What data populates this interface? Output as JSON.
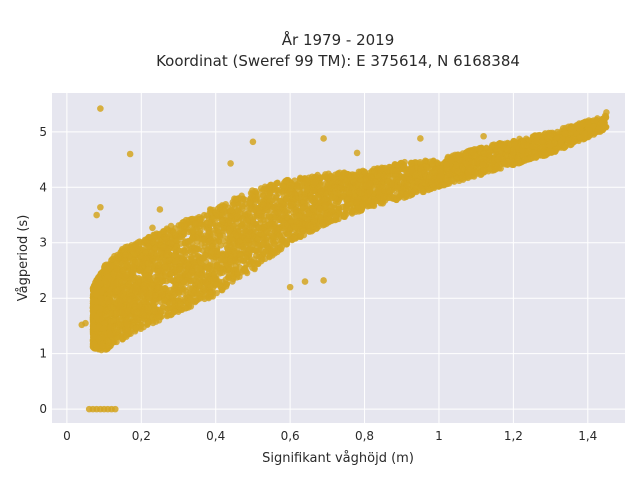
{
  "chart_data": {
    "type": "scatter",
    "title": "År 1979 - 2019",
    "subtitle": "Koordinat (Sweref 99 TM): E 375614, N 6168384",
    "xlabel": "Signifikant våghöjd (m)",
    "ylabel": "Vågperiod (s)",
    "xlim": [
      -0.04,
      1.5
    ],
    "ylim": [
      -0.25,
      5.7
    ],
    "x_ticks": [
      0,
      0.2,
      0.4,
      0.6,
      0.8,
      1,
      1.2,
      1.4
    ],
    "x_tick_labels": [
      "0",
      "0,2",
      "0,4",
      "0,6",
      "0,8",
      "1",
      "1,2",
      "1,4"
    ],
    "y_ticks": [
      0,
      1,
      2,
      3,
      4,
      5
    ],
    "y_tick_labels": [
      "0",
      "1",
      "2",
      "3",
      "4",
      "5"
    ],
    "grid": true,
    "legend": "none",
    "colors": {
      "marker": "#d4a520",
      "plot_bg": "#e6e6ef",
      "grid": "#ffffff",
      "text": "#2a2a2a"
    },
    "series": [
      {
        "cloud_band": [
          {
            "x": 0.07,
            "y_low": 1.1,
            "y_high": 2.2
          },
          {
            "x": 0.1,
            "y_low": 1.05,
            "y_high": 2.6
          },
          {
            "x": 0.15,
            "y_low": 1.25,
            "y_high": 2.9
          },
          {
            "x": 0.2,
            "y_low": 1.45,
            "y_high": 3.05
          },
          {
            "x": 0.3,
            "y_low": 1.75,
            "y_high": 3.35
          },
          {
            "x": 0.4,
            "y_low": 2.05,
            "y_high": 3.65
          },
          {
            "x": 0.5,
            "y_low": 2.5,
            "y_high": 3.95
          },
          {
            "x": 0.6,
            "y_low": 3.0,
            "y_high": 4.15
          },
          {
            "x": 0.7,
            "y_low": 3.35,
            "y_high": 4.25
          },
          {
            "x": 0.8,
            "y_low": 3.6,
            "y_high": 4.3
          },
          {
            "x": 0.9,
            "y_low": 3.8,
            "y_high": 4.45
          },
          {
            "x": 1.0,
            "y_low": 4.0,
            "y_high": 4.5
          },
          {
            "x": 1.1,
            "y_low": 4.2,
            "y_high": 4.7
          },
          {
            "x": 1.2,
            "y_low": 4.4,
            "y_high": 4.85
          },
          {
            "x": 1.3,
            "y_low": 4.6,
            "y_high": 5.0
          },
          {
            "x": 1.45,
            "y_low": 5.05,
            "y_high": 5.3
          }
        ],
        "outliers": [
          {
            "x": 0.09,
            "y": 5.42
          },
          {
            "x": 0.17,
            "y": 4.6
          },
          {
            "x": 0.09,
            "y": 3.64
          },
          {
            "x": 0.08,
            "y": 3.5
          },
          {
            "x": 0.05,
            "y": 1.55
          },
          {
            "x": 0.04,
            "y": 1.52
          },
          {
            "x": 0.5,
            "y": 4.82
          },
          {
            "x": 0.44,
            "y": 4.43
          },
          {
            "x": 0.69,
            "y": 2.32
          },
          {
            "x": 0.64,
            "y": 2.3
          },
          {
            "x": 0.6,
            "y": 2.2
          },
          {
            "x": 0.23,
            "y": 3.27
          },
          {
            "x": 0.21,
            "y": 3.05
          },
          {
            "x": 0.25,
            "y": 3.6
          },
          {
            "x": 0.69,
            "y": 4.88
          },
          {
            "x": 0.95,
            "y": 4.88
          },
          {
            "x": 1.45,
            "y": 5.35
          },
          {
            "x": 1.12,
            "y": 4.92
          },
          {
            "x": 0.78,
            "y": 4.62
          },
          {
            "x": 0.28,
            "y": 3.3
          }
        ],
        "zero_period_points": [
          {
            "x": 0.06,
            "y": 0
          },
          {
            "x": 0.07,
            "y": 0
          },
          {
            "x": 0.08,
            "y": 0
          },
          {
            "x": 0.09,
            "y": 0
          },
          {
            "x": 0.1,
            "y": 0
          },
          {
            "x": 0.11,
            "y": 0
          },
          {
            "x": 0.12,
            "y": 0
          },
          {
            "x": 0.13,
            "y": 0
          }
        ]
      }
    ]
  }
}
